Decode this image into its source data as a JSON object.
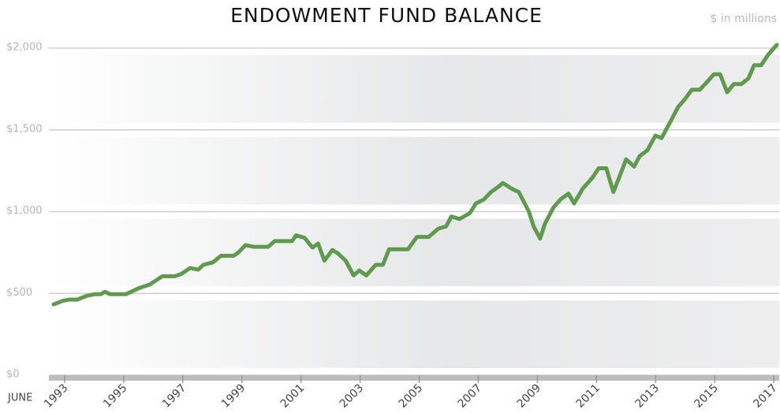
{
  "chart_data": {
    "type": "line",
    "title": "ENDOWMENT FUND BALANCE",
    "subtitle": "$ in millions",
    "x_label": "JUNE",
    "x": [
      1992.63,
      1992.95,
      1993.16,
      1993.43,
      1993.75,
      1994.02,
      1994.23,
      1994.36,
      1994.55,
      1995.08,
      1995.49,
      1995.89,
      1996.31,
      1996.74,
      1996.96,
      1997.25,
      1997.52,
      1997.7,
      1998.02,
      1998.29,
      1998.72,
      1998.88,
      1999.12,
      1999.39,
      1999.89,
      2000.11,
      2000.7,
      2000.83,
      2001.12,
      2001.39,
      2001.58,
      2001.79,
      2002.06,
      2002.25,
      2002.51,
      2002.78,
      2002.97,
      2003.21,
      2003.53,
      2003.77,
      2003.98,
      2004.62,
      2004.92,
      2005.32,
      2005.64,
      2005.91,
      2006.09,
      2006.36,
      2006.71,
      2006.92,
      2007.19,
      2007.43,
      2007.7,
      2007.83,
      2008.13,
      2008.37,
      2008.71,
      2008.87,
      2009.09,
      2009.25,
      2009.54,
      2009.78,
      2010.05,
      2010.24,
      2010.53,
      2010.85,
      2011.07,
      2011.33,
      2011.57,
      2011.81,
      2012.0,
      2012.27,
      2012.46,
      2012.72,
      2012.99,
      2013.2,
      2013.47,
      2013.76,
      2014.0,
      2014.22,
      2014.49,
      2014.75,
      2014.97,
      2015.18,
      2015.42,
      2015.64,
      2015.9,
      2016.14,
      2016.33,
      2016.57,
      2016.81,
      2017.1
    ],
    "series": [
      {
        "name": "Endowment fund balance",
        "color": "#5f9a4f",
        "values": [
          433,
          455,
          462,
          462,
          485,
          495,
          495,
          510,
          495,
          495,
          530,
          555,
          605,
          605,
          620,
          655,
          645,
          675,
          690,
          730,
          730,
          750,
          795,
          785,
          785,
          820,
          820,
          855,
          840,
          780,
          805,
          700,
          765,
          745,
          700,
          610,
          640,
          610,
          675,
          675,
          770,
          770,
          845,
          845,
          895,
          910,
          970,
          955,
          990,
          1050,
          1075,
          1120,
          1155,
          1175,
          1140,
          1120,
          1000,
          910,
          835,
          925,
          1025,
          1075,
          1110,
          1050,
          1140,
          1205,
          1265,
          1265,
          1120,
          1230,
          1320,
          1275,
          1340,
          1375,
          1465,
          1450,
          1540,
          1640,
          1690,
          1745,
          1745,
          1795,
          1840,
          1840,
          1730,
          1780,
          1780,
          1815,
          1895,
          1895,
          1960,
          2020
        ]
      }
    ],
    "xlim": [
      1992.63,
      2017.1
    ],
    "xticks": [
      1993,
      1995,
      1997,
      1999,
      2001,
      2003,
      2005,
      2007,
      2009,
      2011,
      2013,
      2015,
      2017
    ],
    "ylim": [
      0,
      2000
    ],
    "yticks": [
      {
        "value": 0,
        "label": "$0"
      },
      {
        "value": 500,
        "label": "$500"
      },
      {
        "value": 1000,
        "label": "$1,000"
      },
      {
        "value": 1500,
        "label": "$1,500"
      },
      {
        "value": 2000,
        "label": "$2,000"
      }
    ],
    "grid": true
  }
}
